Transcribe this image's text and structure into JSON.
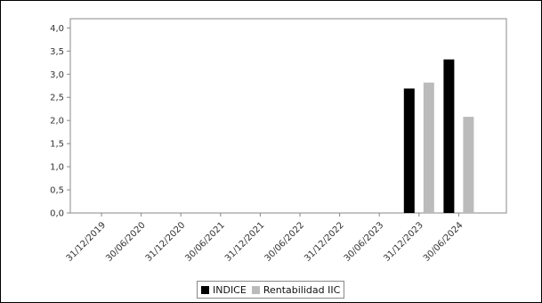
{
  "chart_data": {
    "type": "bar",
    "categories": [
      "31/12/2019",
      "30/06/2020",
      "31/12/2020",
      "30/06/2021",
      "31/12/2021",
      "30/06/2022",
      "31/12/2022",
      "30/06/2023",
      "31/12/2023",
      "30/06/2024"
    ],
    "series": [
      {
        "name": "INDICE",
        "color": "#000000",
        "values": [
          0,
          0,
          0,
          0,
          0,
          0,
          0,
          0,
          2.69,
          3.32
        ]
      },
      {
        "name": "Rentabilidad IIC",
        "color": "#bbbbbb",
        "values": [
          0,
          0,
          0,
          0,
          0,
          0,
          0,
          0,
          2.82,
          2.08
        ]
      }
    ],
    "y_ticks": [
      "0,0",
      "0,5",
      "1,0",
      "1,5",
      "2,0",
      "2,5",
      "3,0",
      "3,5",
      "4,0"
    ],
    "ylim": [
      0,
      4.2
    ],
    "grid": false,
    "legend_position": "bottom-center"
  }
}
